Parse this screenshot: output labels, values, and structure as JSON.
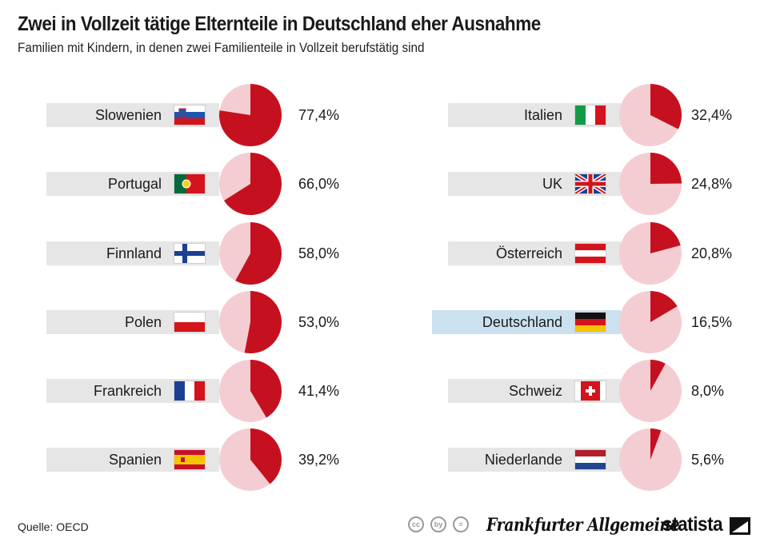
{
  "header": {
    "title": "Zwei in Vollzeit tätige Elternteile in Deutschland eher Ausnahme",
    "subtitle": "Familien mit Kindern, in denen zwei Familienteile in Vollzeit berufstätig sind"
  },
  "footer": {
    "source": "Quelle: OECD",
    "cc_icons": [
      "cc",
      "by",
      "="
    ],
    "publisher": "Frankfurter Allgemeine",
    "brand": "statista"
  },
  "colors": {
    "pie_share": "#c5111f",
    "pie_rest": "#f4cdd2",
    "row_bg": "#e6e6e6",
    "row_highlight": "#cce1ef"
  },
  "chart_data": {
    "type": "pie",
    "title": "Zwei in Vollzeit tätige Elternteile in Deutschland eher Ausnahme",
    "subtitle": "Familien mit Kindern, in denen zwei Familienteile in Vollzeit berufstätig sind",
    "unit": "%",
    "items": [
      {
        "country": "Slowenien",
        "value": 77.4,
        "label": "77,4%",
        "flag": "slovenia-flag"
      },
      {
        "country": "Portugal",
        "value": 66.0,
        "label": "66,0%",
        "flag": "portugal-flag"
      },
      {
        "country": "Finnland",
        "value": 58.0,
        "label": "58,0%",
        "flag": "finland-flag"
      },
      {
        "country": "Polen",
        "value": 53.0,
        "label": "53,0%",
        "flag": "poland-flag"
      },
      {
        "country": "Frankreich",
        "value": 41.4,
        "label": "41,4%",
        "flag": "france-flag"
      },
      {
        "country": "Spanien",
        "value": 39.2,
        "label": "39,2%",
        "flag": "spain-flag"
      },
      {
        "country": "Italien",
        "value": 32.4,
        "label": "32,4%",
        "flag": "italy-flag"
      },
      {
        "country": "UK",
        "value": 24.8,
        "label": "24,8%",
        "flag": "uk-flag"
      },
      {
        "country": "Österreich",
        "value": 20.8,
        "label": "20,8%",
        "flag": "austria-flag"
      },
      {
        "country": "Deutschland",
        "value": 16.5,
        "label": "16,5%",
        "flag": "germany-flag",
        "highlight": true
      },
      {
        "country": "Schweiz",
        "value": 8.0,
        "label": "8,0%",
        "flag": "switzerland-flag"
      },
      {
        "country": "Niederlande",
        "value": 5.6,
        "label": "5,6%",
        "flag": "netherlands-flag"
      }
    ]
  }
}
